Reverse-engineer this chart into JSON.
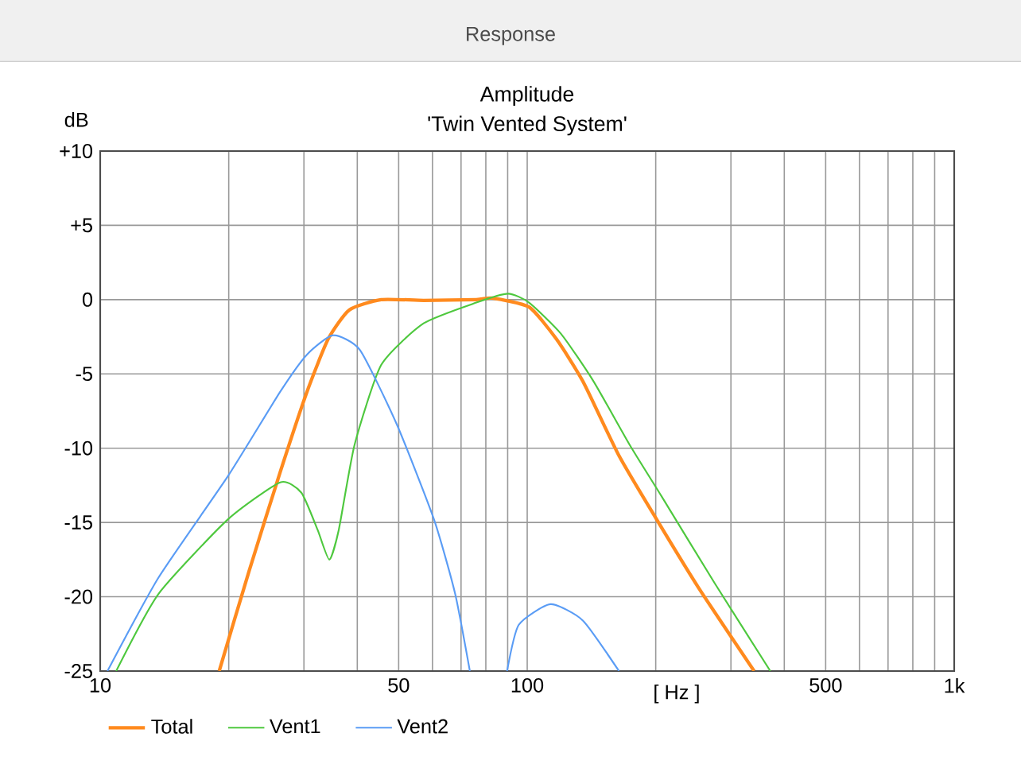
{
  "chart_data": {
    "type": "line",
    "title": "Amplitude",
    "subtitle": "'Twin Vented System'",
    "xlabel": "[ Hz ]",
    "ylabel": "dB",
    "annotations": [
      "Response"
    ],
    "log": "x",
    "grid": true,
    "legend": "bottom",
    "marker": "none",
    "line_style": "solid",
    "xlim": [
      10,
      1000
    ],
    "ylim": [
      -25,
      10
    ],
    "xticks": [
      10,
      {
        "value": 20,
        "label": null
      },
      {
        "value": 30,
        "label": null
      },
      {
        "value": 40,
        "label": null
      },
      50,
      {
        "value": 60,
        "label": null
      },
      {
        "value": 70,
        "label": null
      },
      {
        "value": 80,
        "label": null
      },
      {
        "value": 90,
        "label": null
      },
      100,
      {
        "value": 200,
        "label": null
      },
      {
        "value": 300,
        "label": null
      },
      {
        "value": 400,
        "label": null
      },
      500,
      {
        "value": 600,
        "label": null
      },
      {
        "value": 700,
        "label": null
      },
      {
        "value": 800,
        "label": null
      },
      {
        "value": 900,
        "label": null
      },
      {
        "value": 1000,
        "label": "1k"
      }
    ],
    "yticks": [
      {
        "value": 10,
        "label": "+10"
      },
      {
        "value": 5,
        "label": "+5"
      },
      0,
      -5,
      -10,
      -15,
      -20,
      -25
    ],
    "series": [
      {
        "name": "Total",
        "color": "#ff8a1e",
        "x": [
          19.0,
          22.3,
          26.4,
          30.5,
          34.2,
          38.3,
          45.5,
          57.2,
          76.0,
          82.8,
          101,
          117,
          135,
          164,
          201,
          252,
          340
        ],
        "values": [
          -25,
          -18.3,
          -11.6,
          -6.2,
          -2.65,
          -0.7,
          0.0,
          -0.05,
          0.0,
          0.1,
          -0.5,
          -2.65,
          -5.5,
          -10.5,
          -14.8,
          -19.4,
          -25
        ]
      },
      {
        "name": "Vent1",
        "color": "#4ec83e",
        "x": [
          10.9,
          13.7,
          19.9,
          26.4,
          29.6,
          32.3,
          34.4,
          36.2,
          39.4,
          45.5,
          57.2,
          76.0,
          90.2,
          101,
          120,
          143,
          174,
          207,
          275,
          371
        ],
        "values": [
          -25,
          -19.8,
          -14.8,
          -12.3,
          -13.0,
          -15.5,
          -17.5,
          -15.5,
          -9.8,
          -4.4,
          -1.6,
          -0.2,
          0.4,
          -0.2,
          -2.3,
          -5.5,
          -9.8,
          -13.3,
          -19.1,
          -25
        ]
      },
      {
        "name": "Vent2",
        "color": "#5a9cf5",
        "x": [
          10.4,
          13.7,
          19.9,
          26.4,
          30.5,
          35.1,
          40.6,
          49.5,
          60.5,
          67.8,
          73.4,
          80,
          89.7,
          95.5,
          113.4,
          135,
          164
        ],
        "values": [
          -25,
          -18.7,
          -11.9,
          -6.2,
          -3.7,
          -2.4,
          -3.4,
          -8.4,
          -14.8,
          -19.8,
          -25,
          null,
          -25,
          -21.9,
          -20.5,
          -21.6,
          -25
        ]
      }
    ]
  }
}
